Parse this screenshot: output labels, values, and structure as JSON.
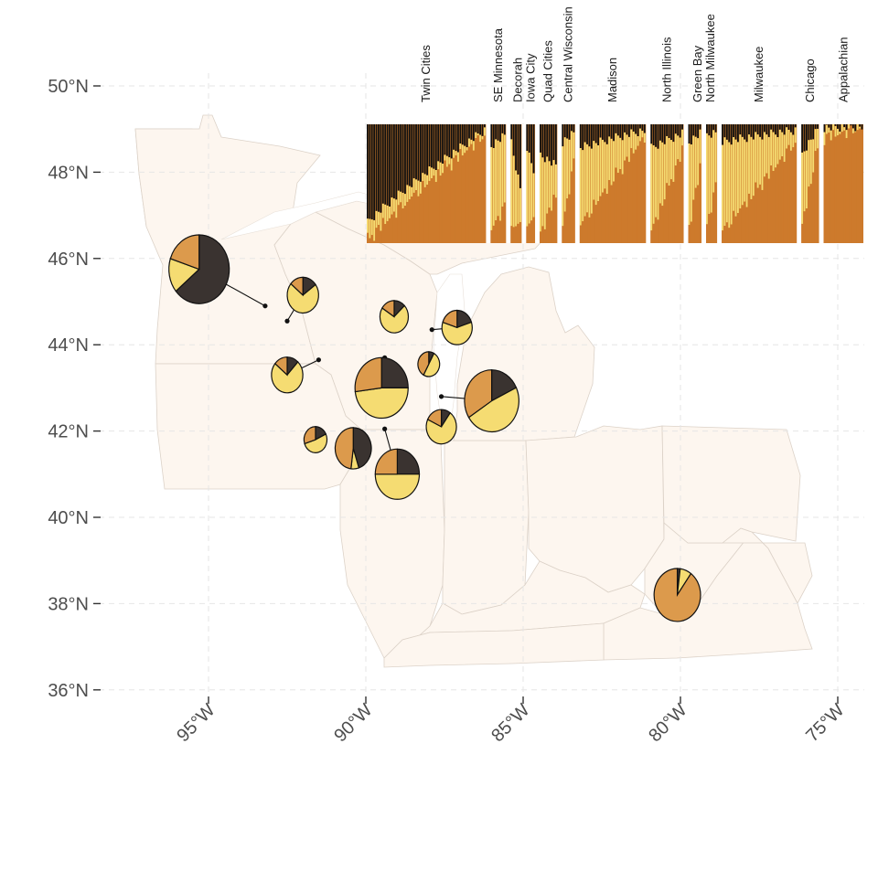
{
  "map": {
    "latitude_ticks": [
      {
        "value": 50,
        "label": "50°N"
      },
      {
        "value": 48,
        "label": "48°N"
      },
      {
        "value": 46,
        "label": "46°N"
      },
      {
        "value": 44,
        "label": "44°N"
      },
      {
        "value": 42,
        "label": "42°N"
      },
      {
        "value": 40,
        "label": "40°N"
      },
      {
        "value": 38,
        "label": "38°N"
      },
      {
        "value": 36,
        "label": "36°N"
      }
    ],
    "longitude_ticks": [
      {
        "value": -95,
        "label": "95°W"
      },
      {
        "value": -90,
        "label": "90°W"
      },
      {
        "value": -85,
        "label": "85°W"
      },
      {
        "value": -80,
        "label": "80°W"
      },
      {
        "value": -75,
        "label": "75°W"
      }
    ],
    "extent": {
      "lon": [
        -99,
        -74
      ],
      "lat": [
        36,
        50
      ]
    },
    "colors": {
      "land": "#fdf6ef",
      "border": "#dcd2c8",
      "cluster_1": "#3a3330",
      "cluster_2": "#f5dc72",
      "cluster_3": "#dc9a4c",
      "admixture_background": "#cd7a2c"
    }
  },
  "chart_data": {
    "type": "map-pies-with-admixture",
    "clusters": [
      "cluster_1",
      "cluster_2",
      "cluster_3"
    ],
    "pies": [
      {
        "site_lon": -93.2,
        "site_lat": 44.9,
        "lon": -95.3,
        "lat": 45.75,
        "size": 1.0,
        "fractions": [
          0.64,
          0.16,
          0.2
        ]
      },
      {
        "site_lon": -92.5,
        "site_lat": 44.55,
        "lon": -92.0,
        "lat": 45.15,
        "size": 0.52,
        "fractions": [
          0.15,
          0.71,
          0.14
        ]
      },
      {
        "site_lon": -91.5,
        "site_lat": 43.65,
        "lon": -92.5,
        "lat": 43.3,
        "size": 0.52,
        "fractions": [
          0.12,
          0.74,
          0.14
        ]
      },
      {
        "site_lon": -91.6,
        "site_lat": 42.0,
        "lon": -91.6,
        "lat": 41.8,
        "size": 0.38,
        "fractions": [
          0.18,
          0.52,
          0.3
        ]
      },
      {
        "site_lon": -89.4,
        "site_lat": 43.7,
        "lon": -89.5,
        "lat": 43.0,
        "size": 0.88,
        "fractions": [
          0.25,
          0.48,
          0.27
        ]
      },
      {
        "site_lon": -89.4,
        "site_lat": 42.05,
        "lon": -89.0,
        "lat": 41.0,
        "size": 0.73,
        "fractions": [
          0.25,
          0.5,
          0.25
        ]
      },
      {
        "site_lon": -90.4,
        "site_lat": 41.6,
        "lon": -90.4,
        "lat": 41.6,
        "size": 0.6,
        "fractions": [
          0.45,
          0.07,
          0.48
        ]
      },
      {
        "site_lon": -89.1,
        "site_lat": 44.5,
        "lon": -89.1,
        "lat": 44.65,
        "size": 0.47,
        "fractions": [
          0.13,
          0.71,
          0.16
        ]
      },
      {
        "site_lon": -88.0,
        "site_lat": 43.5,
        "lon": -88.0,
        "lat": 43.55,
        "size": 0.36,
        "fractions": [
          0.08,
          0.5,
          0.42
        ]
      },
      {
        "site_lon": -87.6,
        "site_lat": 42.1,
        "lon": -87.6,
        "lat": 42.1,
        "size": 0.5,
        "fractions": [
          0.1,
          0.72,
          0.18
        ]
      },
      {
        "site_lon": -87.9,
        "site_lat": 44.35,
        "lon": -87.1,
        "lat": 44.4,
        "size": 0.5,
        "fractions": [
          0.2,
          0.6,
          0.2
        ]
      },
      {
        "site_lon": -87.6,
        "site_lat": 42.8,
        "lon": -86.0,
        "lat": 42.7,
        "size": 0.9,
        "fractions": [
          0.18,
          0.48,
          0.34
        ]
      },
      {
        "site_lon": -80.0,
        "site_lat": 38.25,
        "lon": -80.1,
        "lat": 38.2,
        "size": 0.77,
        "fractions": [
          0.02,
          0.08,
          0.9
        ]
      }
    ],
    "admixture_groups": [
      {
        "label": "Twin Cities",
        "n": 54,
        "black_top": 0.83,
        "black_bottom": 0.05,
        "yellow": [
          0.15,
          0.04
        ]
      },
      {
        "label": "SE Minnesota",
        "n": 7,
        "black_top": 0.18,
        "black_bottom": 0.1,
        "yellow": [
          0.7,
          0.6
        ]
      },
      {
        "label": "Decorah",
        "n": 5,
        "black_top": 0.15,
        "black_bottom": 0.55,
        "yellow": [
          0.7,
          0.3
        ]
      },
      {
        "label": "Iowa City",
        "n": 4,
        "black_top": 0.2,
        "black_bottom": 0.4,
        "yellow": [
          0.65,
          0.4
        ]
      },
      {
        "label": "Quad Cities",
        "n": 8,
        "black_top": 0.25,
        "black_bottom": 0.35,
        "yellow": [
          0.65,
          0.25
        ]
      },
      {
        "label": "Central Wisconsin",
        "n": 6,
        "black_top": 0.15,
        "black_bottom": 0.08,
        "yellow": [
          0.7,
          0.25
        ]
      },
      {
        "label": "Madison",
        "n": 30,
        "black_top": 0.2,
        "black_bottom": 0.05,
        "yellow": [
          0.65,
          0.05
        ]
      },
      {
        "label": "North Illinois",
        "n": 15,
        "black_top": 0.2,
        "black_bottom": 0.08,
        "yellow": [
          0.7,
          0.15
        ]
      },
      {
        "label": "Green Bay",
        "n": 6,
        "black_top": 0.15,
        "black_bottom": 0.08,
        "yellow": [
          0.7,
          0.3
        ]
      },
      {
        "label": "North Milwaukee",
        "n": 5,
        "black_top": 0.1,
        "black_bottom": 0.08,
        "yellow": [
          0.75,
          0.45
        ]
      },
      {
        "label": "Milwaukee",
        "n": 34,
        "black_top": 0.15,
        "black_bottom": 0.05,
        "yellow": [
          0.75,
          0.1
        ]
      },
      {
        "label": "Chicago",
        "n": 8,
        "black_top": 0.25,
        "black_bottom": 0.05,
        "yellow": [
          0.6,
          0.15
        ]
      },
      {
        "label": "Appalachian",
        "n": 18,
        "black_top": 0.03,
        "black_bottom": 0.02,
        "yellow": [
          0.08,
          0.01
        ]
      }
    ]
  }
}
